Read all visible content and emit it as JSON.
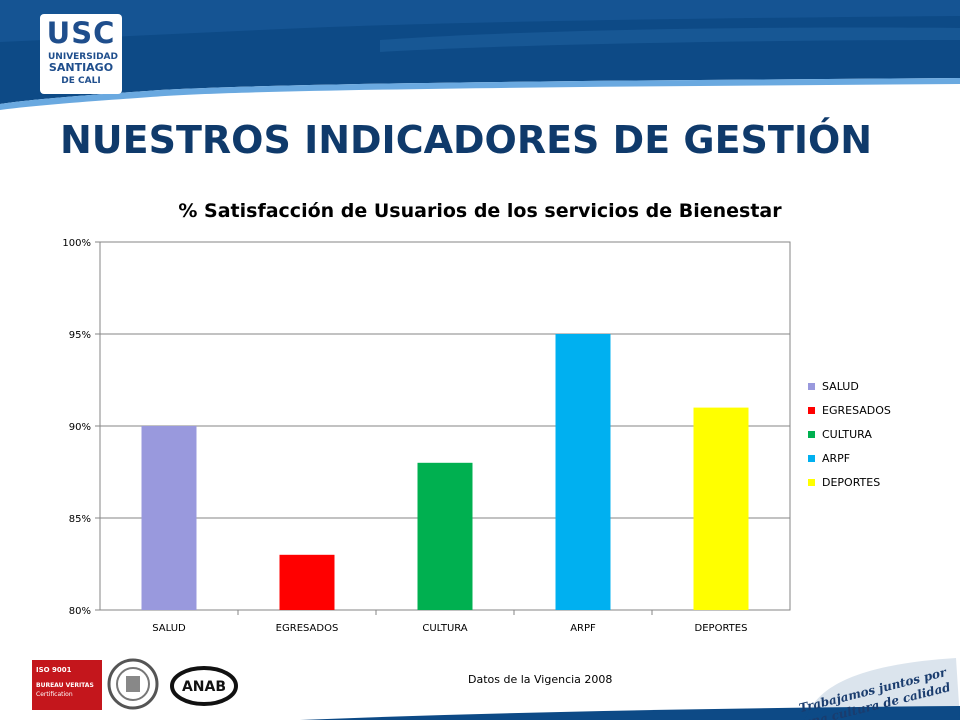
{
  "logo": {
    "acronym": "USC",
    "line1": "UNIVERSIDAD",
    "line2": "SANTIAGO",
    "line3": "DE CALI"
  },
  "page_title": "NUESTROS INDICADORES DE GESTIÓN",
  "chart_data": {
    "type": "bar",
    "title": "% Satisfacción de Usuarios de los servicios de Bienestar",
    "categories": [
      "SALUD",
      "EGRESADOS",
      "CULTURA",
      "ARPF",
      "DEPORTES"
    ],
    "values": [
      90,
      83,
      88,
      95,
      91
    ],
    "colors": [
      "#9999dd",
      "#ff0000",
      "#00b050",
      "#00b0f0",
      "#ffff00"
    ],
    "ylim": [
      80,
      100
    ],
    "yticks": [
      80,
      85,
      90,
      95,
      100
    ],
    "ytick_labels": [
      "80%",
      "85%",
      "90%",
      "95%",
      "100%"
    ],
    "grid": true,
    "legend": {
      "placement": "right",
      "entries": [
        "SALUD",
        "EGRESADOS",
        "CULTURA",
        "ARPF",
        "DEPORTES"
      ]
    },
    "xlabel": "",
    "ylabel": ""
  },
  "footer_note": "Datos de la Vigencia 2008",
  "certifications": {
    "bv_line1": "ISO 9001",
    "bv_line2": "BUREAU VERITAS",
    "bv_line3": "Certification",
    "anab": "ANAB"
  },
  "slogan": {
    "line1": "Trabajamos juntos por",
    "line2": "una cultura de calidad"
  },
  "theme": {
    "header_dark": "#0d4a86",
    "header_light": "#5b9bd5",
    "title_color": "#0f3a6b"
  }
}
